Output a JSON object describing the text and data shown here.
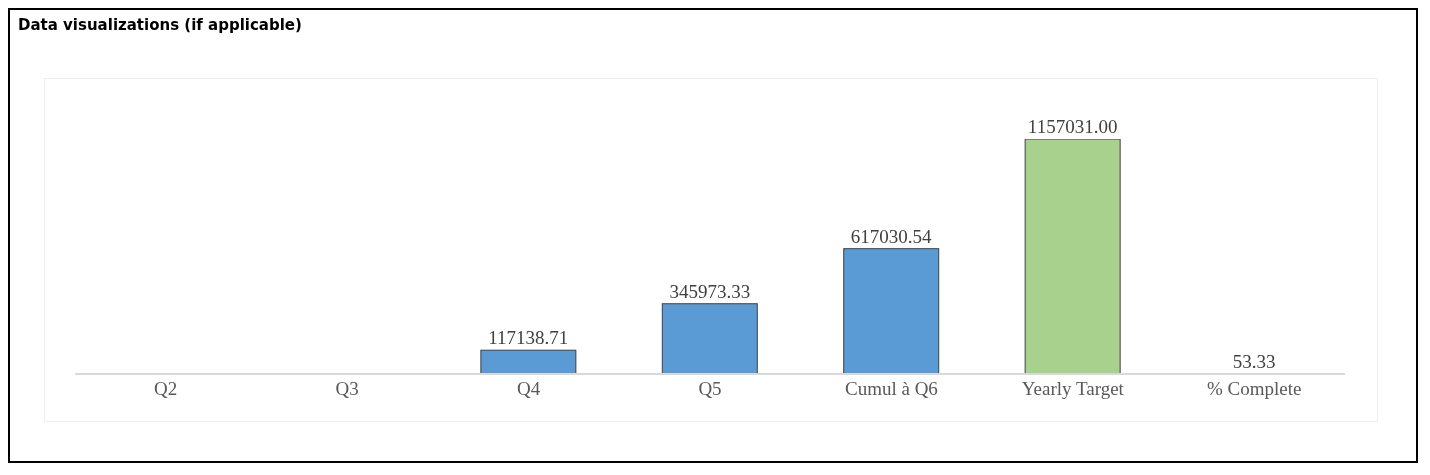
{
  "chart_data": {
    "type": "bar",
    "title": "Data visualizations (if applicable)",
    "categories": [
      "Q2",
      "Q3",
      "Q4",
      "Q5",
      "Cumul à Q6",
      "Yearly Target",
      "% Complete"
    ],
    "values": [
      0,
      0,
      117138.71,
      345973.33,
      617030.54,
      1157031.0,
      53.33
    ],
    "value_labels": [
      null,
      null,
      "117138.71",
      "345973.33",
      "617030.54",
      "1157031.00",
      "53.33"
    ],
    "colors": [
      "#595959",
      "#595959",
      "#5b9bd5",
      "#5b9bd5",
      "#5b9bd5",
      "#a9d18e",
      "#f8cbad"
    ],
    "grid": false,
    "legend": false
  }
}
